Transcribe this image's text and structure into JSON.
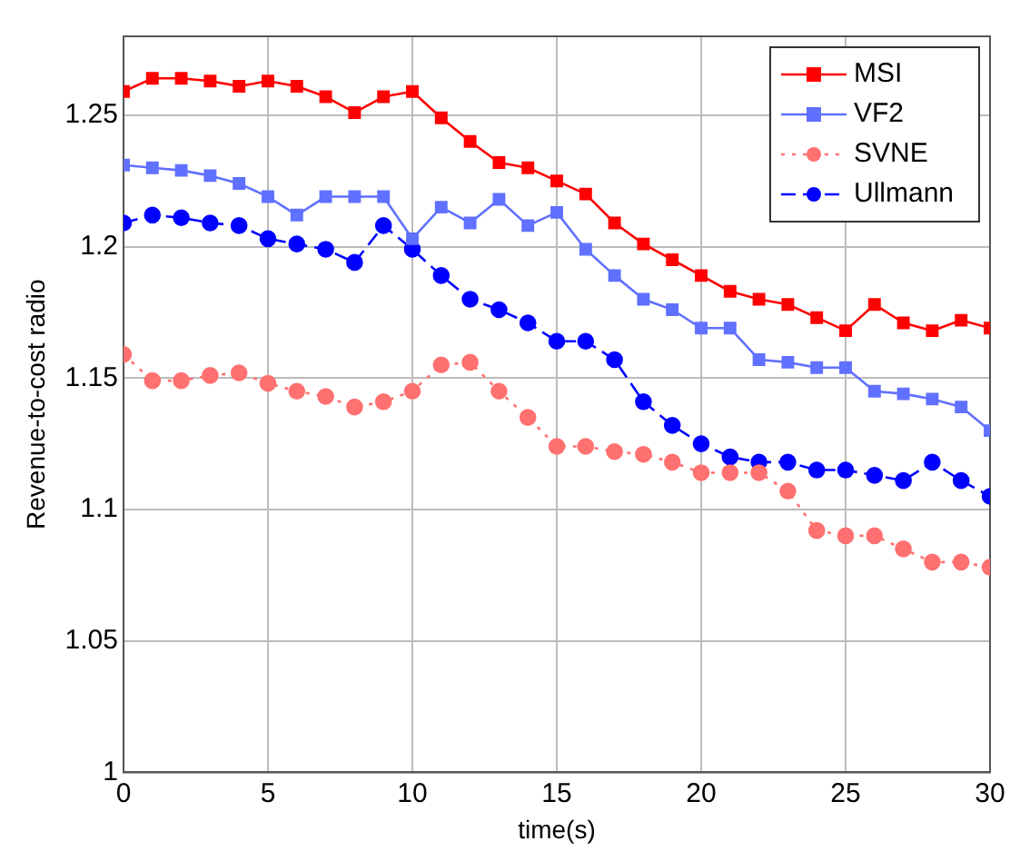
{
  "chart_data": {
    "type": "line",
    "xlabel": "time(s)",
    "ylabel": "Revenue-to-cost radio",
    "x": [
      0,
      1,
      2,
      3,
      4,
      5,
      6,
      7,
      8,
      9,
      10,
      11,
      12,
      13,
      14,
      15,
      16,
      17,
      18,
      19,
      20,
      21,
      22,
      23,
      24,
      25,
      26,
      27,
      28,
      29,
      30
    ],
    "series": [
      {
        "name": "MSI",
        "color": "#ff0000",
        "marker": "square",
        "line_style": "solid",
        "values": [
          1.259,
          1.264,
          1.264,
          1.263,
          1.261,
          1.263,
          1.261,
          1.257,
          1.251,
          1.257,
          1.259,
          1.249,
          1.24,
          1.232,
          1.23,
          1.225,
          1.22,
          1.209,
          1.201,
          1.195,
          1.189,
          1.183,
          1.18,
          1.178,
          1.173,
          1.168,
          1.178,
          1.171,
          1.168,
          1.172,
          1.169
        ]
      },
      {
        "name": "VF2",
        "color": "#6070ff",
        "marker": "square",
        "line_style": "solid",
        "values": [
          1.231,
          1.23,
          1.229,
          1.227,
          1.224,
          1.219,
          1.212,
          1.219,
          1.219,
          1.219,
          1.203,
          1.215,
          1.209,
          1.218,
          1.208,
          1.213,
          1.199,
          1.189,
          1.18,
          1.176,
          1.169,
          1.169,
          1.157,
          1.156,
          1.154,
          1.154,
          1.145,
          1.144,
          1.142,
          1.139,
          1.13
        ]
      },
      {
        "name": "SVNE",
        "color": "#ff7070",
        "marker": "circle",
        "line_style": "dotted",
        "values": [
          1.159,
          1.149,
          1.149,
          1.151,
          1.152,
          1.148,
          1.145,
          1.143,
          1.139,
          1.141,
          1.145,
          1.155,
          1.156,
          1.145,
          1.135,
          1.124,
          1.124,
          1.122,
          1.121,
          1.118,
          1.114,
          1.114,
          1.114,
          1.107,
          1.092,
          1.09,
          1.09,
          1.085,
          1.08,
          1.08,
          1.078
        ]
      },
      {
        "name": "Ullmann",
        "color": "#0000ff",
        "marker": "circle",
        "line_style": "dashed",
        "values": [
          1.209,
          1.212,
          1.211,
          1.209,
          1.208,
          1.203,
          1.201,
          1.199,
          1.194,
          1.208,
          1.199,
          1.189,
          1.18,
          1.176,
          1.171,
          1.164,
          1.164,
          1.157,
          1.141,
          1.132,
          1.125,
          1.12,
          1.118,
          1.118,
          1.115,
          1.115,
          1.113,
          1.111,
          1.118,
          1.111,
          1.105
        ]
      }
    ],
    "xlim": [
      0,
      30
    ],
    "xticks": [
      0,
      5,
      10,
      15,
      20,
      25,
      30
    ],
    "ylim": [
      1,
      1.28
    ],
    "yticks": [
      1,
      1.05,
      1.1,
      1.15,
      1.2,
      1.25
    ],
    "grid": true,
    "legend": "top right"
  }
}
